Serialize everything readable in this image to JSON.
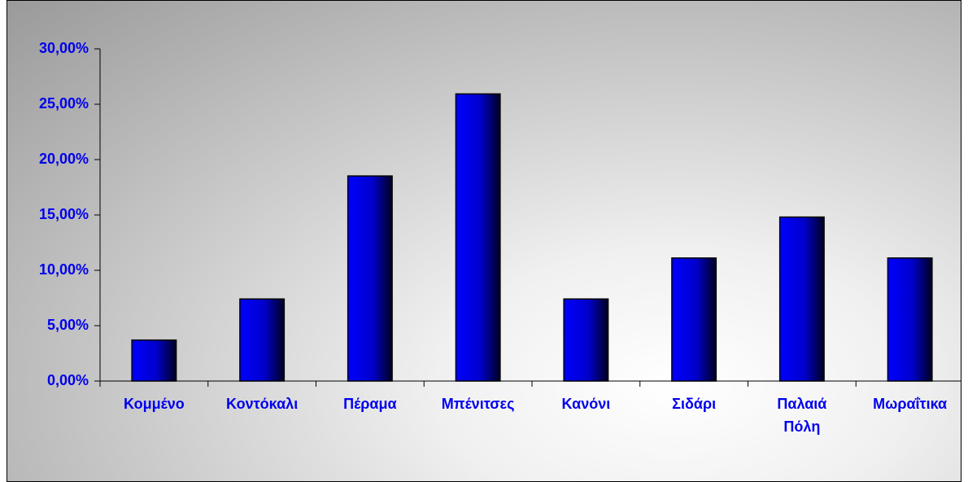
{
  "chart_data": {
    "type": "bar",
    "categories": [
      "Κομμένο",
      "Κοντόκαλι",
      "Πέραμα",
      "Μπένιτσες",
      "Κανόνι",
      "Σιδάρι",
      "Παλαιά Πόλη",
      "Μωραΐτικα"
    ],
    "values": [
      3.7,
      7.41,
      18.52,
      25.93,
      7.41,
      11.11,
      14.81,
      11.11
    ],
    "color": "#0000ff",
    "ylim": [
      0,
      30
    ],
    "yticks": [
      {
        "value": 0,
        "label": "0,00%"
      },
      {
        "value": 5,
        "label": "5,00%"
      },
      {
        "value": 10,
        "label": "10,00%"
      },
      {
        "value": 15,
        "label": "15,00%"
      },
      {
        "value": 20,
        "label": "20,00%"
      },
      {
        "value": 25,
        "label": "25,00%"
      },
      {
        "value": 30,
        "label": "30,00%"
      }
    ],
    "grid": false
  }
}
